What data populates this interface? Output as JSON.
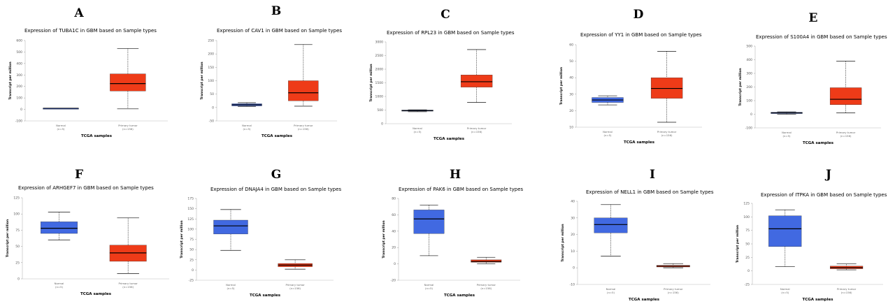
{
  "chart_data": [
    {
      "letter": "A",
      "type": "box",
      "title": "Expression of TUBA1C in GBM based on Sample types",
      "ylabel": "Transcript per million",
      "xlabel": "TCGA samples",
      "ylim": [
        -100,
        600
      ],
      "yticks": [
        -100,
        0,
        100,
        200,
        300,
        400,
        500,
        600
      ],
      "boxes": [
        {
          "category": "Normal",
          "n": "(n=5)",
          "min": 10,
          "q1": 10,
          "median": 10,
          "q3": 10,
          "max": 10,
          "color": "#4169e1"
        },
        {
          "category": "Primary tumor",
          "n": "(n=156)",
          "min": 5,
          "q1": 160,
          "median": 225,
          "q3": 310,
          "max": 530,
          "color": "#ee3b18"
        }
      ]
    },
    {
      "letter": "B",
      "type": "box",
      "title": "Expression of CAV1 in GBM based on Sample types",
      "ylabel": "Transcript per million",
      "xlabel": "TCGA samples",
      "ylim": [
        -50,
        250
      ],
      "yticks": [
        -50,
        0,
        50,
        100,
        150,
        200,
        250
      ],
      "boxes": [
        {
          "category": "Normal",
          "n": "(n=5)",
          "min": 4,
          "q1": 6,
          "median": 10,
          "q3": 14,
          "max": 18,
          "color": "#4169e1"
        },
        {
          "category": "Primary tumor",
          "n": "(n=156)",
          "min": 5,
          "q1": 25,
          "median": 55,
          "q3": 100,
          "max": 235,
          "color": "#ee3b18"
        }
      ]
    },
    {
      "letter": "C",
      "type": "box",
      "title": "Expression of RPL23 in GBM based on Sample types",
      "ylabel": "Transcript per million",
      "xlabel": "TCGA samples",
      "ylim": [
        0,
        3000
      ],
      "yticks": [
        0,
        500,
        1000,
        1500,
        2000,
        2500,
        3000
      ],
      "boxes": [
        {
          "category": "Normal",
          "n": "(n=5)",
          "min": 440,
          "q1": 460,
          "median": 480,
          "q3": 500,
          "max": 510,
          "color": "#4169e1"
        },
        {
          "category": "Primary tumor",
          "n": "(n=156)",
          "min": 780,
          "q1": 1340,
          "median": 1540,
          "q3": 1790,
          "max": 2720,
          "color": "#ee3b18"
        }
      ]
    },
    {
      "letter": "D",
      "type": "box",
      "title": "Expression of YY1 in GBM based on Sample types",
      "ylabel": "Transcript per million",
      "xlabel": "TCGA samples",
      "ylim": [
        10,
        60
      ],
      "yticks": [
        10,
        20,
        30,
        40,
        50,
        60
      ],
      "boxes": [
        {
          "category": "Normal",
          "n": "(n=5)",
          "min": 23.5,
          "q1": 25,
          "median": 26.5,
          "q3": 28,
          "max": 29,
          "color": "#4169e1"
        },
        {
          "category": "Primary tumor",
          "n": "(n=156)",
          "min": 13,
          "q1": 27.5,
          "median": 33.5,
          "q3": 40,
          "max": 56,
          "color": "#ee3b18"
        }
      ]
    },
    {
      "letter": "E",
      "type": "box",
      "title": "Expression of S100A4 in GBM based on Sample types",
      "ylabel": "Transcript per million",
      "xlabel": "TCGA samples",
      "ylim": [
        -100,
        500
      ],
      "yticks": [
        -100,
        0,
        100,
        200,
        300,
        400,
        500
      ],
      "boxes": [
        {
          "category": "Normal",
          "n": "(n=5)",
          "min": 0,
          "q1": 5,
          "median": 10,
          "q3": 15,
          "max": 18,
          "color": "#4169e1"
        },
        {
          "category": "Primary tumor",
          "n": "(n=156)",
          "min": 10,
          "q1": 70,
          "median": 110,
          "q3": 195,
          "max": 390,
          "color": "#ee3b18"
        }
      ]
    },
    {
      "letter": "F",
      "type": "box",
      "title": "Expression of ARHGEF7 in GBM based on Sample types",
      "ylabel": "Transcript per million",
      "xlabel": "TCGA samples",
      "ylim": [
        0,
        125
      ],
      "yticks": [
        0,
        25,
        50,
        75,
        100,
        125
      ],
      "boxes": [
        {
          "category": "Normal",
          "n": "(n=5)",
          "min": 60,
          "q1": 70,
          "median": 78,
          "q3": 88,
          "max": 103,
          "color": "#4169e1"
        },
        {
          "category": "Primary tumor",
          "n": "(n=156)",
          "min": 8,
          "q1": 27,
          "median": 40,
          "q3": 52,
          "max": 94,
          "color": "#ee3b18"
        }
      ]
    },
    {
      "letter": "G",
      "type": "box",
      "title": "Expression of DNAJA4 in GBM based on Sample types",
      "ylabel": "Transcript per million",
      "xlabel": "TCGA samples",
      "ylim": [
        -25,
        175
      ],
      "yticks": [
        -25,
        0,
        25,
        50,
        75,
        100,
        125,
        150,
        175
      ],
      "boxes": [
        {
          "category": "Normal",
          "n": "(n=5)",
          "min": 48,
          "q1": 88,
          "median": 108,
          "q3": 122,
          "max": 148,
          "color": "#4169e1"
        },
        {
          "category": "Primary tumor",
          "n": "(n=156)",
          "min": 2,
          "q1": 8,
          "median": 12,
          "q3": 16,
          "max": 25,
          "color": "#ee3b18"
        }
      ]
    },
    {
      "letter": "H",
      "type": "box",
      "title": "Expression of PAK6 in GBM based on Sample types",
      "ylabel": "Transcript per million",
      "xlabel": "TCGA samples",
      "ylim": [
        -20,
        80
      ],
      "yticks": [
        -20,
        0,
        20,
        40,
        60,
        80
      ],
      "boxes": [
        {
          "category": "Normal",
          "n": "(n=5)",
          "min": 10,
          "q1": 37,
          "median": 55,
          "q3": 66,
          "max": 72,
          "color": "#4169e1"
        },
        {
          "category": "Primary tumor",
          "n": "(n=156)",
          "min": 0,
          "q1": 2,
          "median": 3,
          "q3": 5,
          "max": 8,
          "color": "#ee3b18"
        }
      ]
    },
    {
      "letter": "I",
      "type": "box",
      "title": "Expression of NELL1 in GBM based on Sample types",
      "ylabel": "Transcript per million",
      "xlabel": "TCGA samples",
      "ylim": [
        -10,
        40
      ],
      "yticks": [
        -10,
        0,
        10,
        20,
        30,
        40
      ],
      "boxes": [
        {
          "category": "Normal",
          "n": "(n=5)",
          "min": 7,
          "q1": 21,
          "median": 26,
          "q3": 30,
          "max": 38,
          "color": "#4169e1"
        },
        {
          "category": "Primary tumor",
          "n": "(n=156)",
          "min": 0,
          "q1": 0.5,
          "median": 1,
          "q3": 1.5,
          "max": 2.5,
          "color": "#ee3b18"
        }
      ]
    },
    {
      "letter": "J",
      "type": "box",
      "title": "Expression of ITPKA in GBM based on Sample types",
      "ylabel": "Transcript per million",
      "xlabel": "TCGA samples",
      "ylim": [
        -25,
        125
      ],
      "yticks": [
        -25,
        0,
        25,
        50,
        75,
        100,
        125
      ],
      "boxes": [
        {
          "category": "Normal",
          "n": "(n=5)",
          "min": 8,
          "q1": 45,
          "median": 78,
          "q3": 102,
          "max": 113,
          "color": "#4169e1"
        },
        {
          "category": "Primary tumor",
          "n": "(n=156)",
          "min": 2,
          "q1": 4,
          "median": 6,
          "q3": 9,
          "max": 13,
          "color": "#ee3b18"
        }
      ]
    }
  ]
}
